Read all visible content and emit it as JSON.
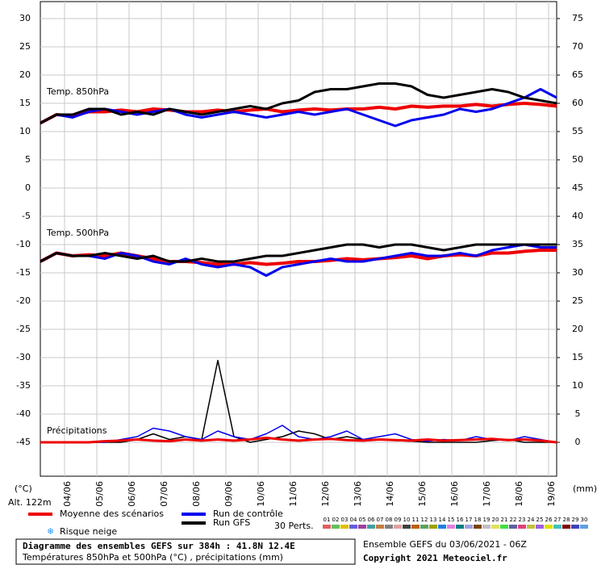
{
  "chart_data": {
    "type": "line",
    "panel_labels": [
      "Temp. 850hPa",
      "Temp. 500hPa",
      "Précipitations"
    ],
    "ylabel": "(°C)",
    "y2label": "(mm)",
    "altitude": "Alt. 122m",
    "xlim": [
      0,
      384
    ],
    "xticks": [
      {
        "value": 18,
        "label": "04/06"
      },
      {
        "value": 42,
        "label": "05/06"
      },
      {
        "value": 66,
        "label": "06/06"
      },
      {
        "value": 90,
        "label": "07/06"
      },
      {
        "value": 114,
        "label": "08/06"
      },
      {
        "value": 138,
        "label": "09/06"
      },
      {
        "value": 162,
        "label": "10/06"
      },
      {
        "value": 186,
        "label": "11/06"
      },
      {
        "value": 210,
        "label": "12/06"
      },
      {
        "value": 234,
        "label": "13/06"
      },
      {
        "value": 258,
        "label": "14/06"
      },
      {
        "value": 282,
        "label": "15/06"
      },
      {
        "value": 306,
        "label": "16/06"
      },
      {
        "value": 330,
        "label": "17/06"
      },
      {
        "value": 354,
        "label": "18/06"
      },
      {
        "value": 378,
        "label": "19/06"
      }
    ],
    "ylim": [
      -51,
      33
    ],
    "yticks": [
      30,
      25,
      20,
      15,
      10,
      5,
      0,
      -5,
      -10,
      -15,
      -20,
      -25,
      -30,
      -35,
      -40,
      -45
    ],
    "y2lim": [
      -6,
      78
    ],
    "y2ticks": [
      75,
      70,
      65,
      60,
      55,
      50,
      45,
      40,
      35,
      30,
      25,
      20,
      15,
      10,
      5,
      0
    ],
    "grid": true,
    "x": [
      0,
      12,
      24,
      36,
      48,
      60,
      72,
      84,
      96,
      108,
      120,
      132,
      144,
      156,
      168,
      180,
      192,
      204,
      216,
      228,
      240,
      252,
      264,
      276,
      288,
      300,
      312,
      324,
      336,
      348,
      360,
      372,
      384
    ],
    "series": [
      {
        "color": "#ee0000",
        "width": 4,
        "values": [
          11.5,
          13,
          12.8,
          13.5,
          13.5,
          13.8,
          13.5,
          14,
          13.8,
          13.5,
          13.5,
          13.8,
          13.5,
          13.8,
          14,
          13.5,
          13.8,
          14,
          13.8,
          14,
          14,
          14.3,
          14,
          14.5,
          14.3,
          14.5,
          14.5,
          14.8,
          14.5,
          14.8,
          15,
          14.8,
          14.5
        ]
      },
      {
        "color": "#0000ee",
        "width": 3,
        "values": [
          11.5,
          13,
          12.5,
          13.5,
          14,
          13.5,
          13,
          13.5,
          14,
          13,
          12.5,
          13,
          13.5,
          13,
          12.5,
          13,
          13.5,
          13,
          13.5,
          14,
          13,
          12,
          11,
          12,
          12.5,
          13,
          14,
          13.5,
          14,
          15,
          16,
          17.5,
          16
        ]
      },
      {
        "color": "#000000",
        "width": 3,
        "values": [
          11.5,
          13,
          13,
          14,
          14,
          13,
          13.5,
          13,
          14,
          13.5,
          13,
          13.5,
          14,
          14.5,
          14,
          15,
          15.5,
          17,
          17.5,
          17.5,
          18,
          18.5,
          18.5,
          18,
          16.5,
          16,
          16.5,
          17,
          17.5,
          17,
          16,
          15.5,
          15
        ]
      },
      {
        "color": "#ee0000",
        "width": 4,
        "values": [
          -13,
          -11.5,
          -12,
          -11.8,
          -12,
          -11.5,
          -12,
          -12.5,
          -13,
          -13,
          -13.2,
          -13.5,
          -13.5,
          -13.2,
          -13.5,
          -13.3,
          -13,
          -13,
          -12.8,
          -12.5,
          -12.7,
          -12.5,
          -12.3,
          -12,
          -12.5,
          -12,
          -11.8,
          -12,
          -11.5,
          -11.5,
          -11.2,
          -11,
          -11
        ]
      },
      {
        "color": "#0000ee",
        "width": 3,
        "values": [
          -13,
          -11.5,
          -12,
          -12,
          -12.5,
          -11.5,
          -12,
          -13,
          -13.5,
          -12.5,
          -13.5,
          -14,
          -13.5,
          -14,
          -15.5,
          -14,
          -13.5,
          -13,
          -12.5,
          -13,
          -13,
          -12.5,
          -12,
          -11.5,
          -12,
          -12,
          -11.5,
          -12,
          -11,
          -10.5,
          -10,
          -10.5,
          -10.5
        ]
      },
      {
        "color": "#000000",
        "width": 3,
        "values": [
          -13,
          -11.5,
          -12,
          -12,
          -11.5,
          -12,
          -12.5,
          -12,
          -13,
          -13,
          -12.5,
          -13,
          -13,
          -12.5,
          -12,
          -12,
          -11.5,
          -11,
          -10.5,
          -10,
          -10,
          -10.5,
          -10,
          -10,
          -10.5,
          -11,
          -10.5,
          -10,
          -10,
          -10,
          -10,
          -10,
          -10
        ]
      },
      {
        "color": "#000000",
        "width": 1.5,
        "axis": "y2",
        "values": [
          0,
          0,
          0,
          0,
          0,
          0,
          0.5,
          1.5,
          0.5,
          1,
          0.5,
          14.5,
          1,
          0,
          0.5,
          1,
          2,
          1.5,
          0.5,
          1,
          0.5,
          0.5,
          0.3,
          0.2,
          0,
          0,
          0,
          0,
          0.3,
          0.5,
          0,
          0,
          0
        ]
      },
      {
        "color": "#0000ee",
        "width": 1.5,
        "axis": "y2",
        "values": [
          0,
          0,
          0,
          0,
          0,
          0.5,
          1,
          2.5,
          2,
          1,
          0.5,
          2,
          1,
          0.5,
          1.5,
          3,
          1,
          0.5,
          1,
          2,
          0.5,
          1,
          1.5,
          0.5,
          0.2,
          0.5,
          0.3,
          1,
          0.5,
          0.3,
          1,
          0.5,
          0
        ]
      },
      {
        "color": "#ee0000",
        "width": 3,
        "axis": "y2",
        "values": [
          0,
          0,
          0,
          0,
          0.2,
          0.3,
          0.5,
          0.3,
          0.2,
          0.5,
          0.3,
          0.5,
          0.3,
          0.5,
          0.8,
          0.5,
          0.3,
          0.5,
          0.6,
          0.4,
          0.3,
          0.5,
          0.4,
          0.3,
          0.5,
          0.3,
          0.4,
          0.5,
          0.6,
          0.4,
          0.5,
          0.3,
          0
        ]
      }
    ],
    "legend": [
      {
        "name": "Moyenne des scénarios",
        "color": "#ee0000"
      },
      {
        "name": "Run de contrôle",
        "color": "#0000ee"
      },
      {
        "name": "Run GFS",
        "color": "#000000"
      }
    ],
    "snow_label": "Risque neige",
    "perturbations_label": "30 Perts.",
    "perturbations": [
      {
        "name": "01",
        "color": "#e06060"
      },
      {
        "name": "02",
        "color": "#60c060"
      },
      {
        "name": "03",
        "color": "#e0c000"
      },
      {
        "name": "04",
        "color": "#6060e0"
      },
      {
        "name": "05",
        "color": "#a040a0"
      },
      {
        "name": "06",
        "color": "#40a0a0"
      },
      {
        "name": "07",
        "color": "#c08040"
      },
      {
        "name": "08",
        "color": "#808080"
      },
      {
        "name": "09",
        "color": "#e0a0a0"
      },
      {
        "name": "10",
        "color": "#404040"
      },
      {
        "name": "11",
        "color": "#c06000"
      },
      {
        "name": "12",
        "color": "#60a060"
      },
      {
        "name": "13",
        "color": "#a0a000"
      },
      {
        "name": "14",
        "color": "#2080e0"
      },
      {
        "name": "15",
        "color": "#e080e0"
      },
      {
        "name": "16",
        "color": "#008080"
      },
      {
        "name": "17",
        "color": "#a0a0e0"
      },
      {
        "name": "18",
        "color": "#804000"
      },
      {
        "name": "19",
        "color": "#c0c0c0"
      },
      {
        "name": "20",
        "color": "#e0e060"
      },
      {
        "name": "21",
        "color": "#40e040"
      },
      {
        "name": "22",
        "color": "#6060a0"
      },
      {
        "name": "23",
        "color": "#e04080"
      },
      {
        "name": "24",
        "color": "#c0c040"
      },
      {
        "name": "25",
        "color": "#a060e0"
      },
      {
        "name": "26",
        "color": "#e0e000"
      },
      {
        "name": "27",
        "color": "#40c0c0"
      },
      {
        "name": "28",
        "color": "#800000"
      },
      {
        "name": "29",
        "color": "#4040c0"
      },
      {
        "name": "30",
        "color": "#60a0e0"
      }
    ],
    "title": "Diagramme des ensembles GEFS sur 384h : 41.8N 12.4E",
    "subtitle": "Températures 850hPa et 500hPa (°C) , précipitations (mm)",
    "run_info": "Ensemble GEFS du 03/06/2021 - 06Z",
    "copyright": "Copyright 2021 Meteociel.fr"
  }
}
